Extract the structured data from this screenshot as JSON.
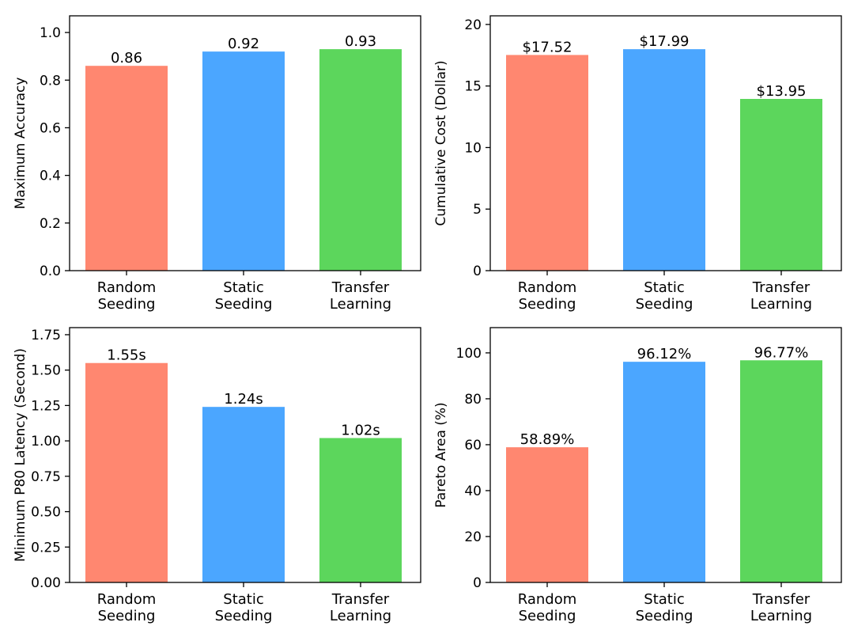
{
  "chart_data": [
    {
      "type": "bar",
      "categories": [
        [
          "Random",
          "Seeding"
        ],
        [
          "Static",
          "Seeding"
        ],
        [
          "Transfer",
          "Learning"
        ]
      ],
      "values": [
        0.86,
        0.92,
        0.93
      ],
      "value_labels": [
        "0.86",
        "0.92",
        "0.93"
      ],
      "title": "",
      "xlabel": "",
      "ylabel": "Maximum Accuracy",
      "ylim": [
        0,
        1.07
      ],
      "yticks": [
        0,
        0.2,
        0.4,
        0.6,
        0.8,
        1.0
      ],
      "ytick_labels": [
        "0.0",
        "0.2",
        "0.4",
        "0.6",
        "0.8",
        "1.0"
      ],
      "colors": [
        "#FF8770",
        "#4BA6FF",
        "#5CD65C"
      ],
      "grid": false
    },
    {
      "type": "bar",
      "categories": [
        [
          "Random",
          "Seeding"
        ],
        [
          "Static",
          "Seeding"
        ],
        [
          "Transfer",
          "Learning"
        ]
      ],
      "values": [
        17.52,
        17.99,
        13.95
      ],
      "value_labels": [
        "$17.52",
        "$17.99",
        "$13.95"
      ],
      "title": "",
      "xlabel": "",
      "ylabel": "Cumulative Cost (Dollar)",
      "ylim": [
        0,
        20.7
      ],
      "yticks": [
        0,
        5,
        10,
        15,
        20
      ],
      "ytick_labels": [
        "0",
        "5",
        "10",
        "15",
        "20"
      ],
      "colors": [
        "#FF8770",
        "#4BA6FF",
        "#5CD65C"
      ],
      "grid": false
    },
    {
      "type": "bar",
      "categories": [
        [
          "Random",
          "Seeding"
        ],
        [
          "Static",
          "Seeding"
        ],
        [
          "Transfer",
          "Learning"
        ]
      ],
      "values": [
        1.55,
        1.24,
        1.02
      ],
      "value_labels": [
        "1.55s",
        "1.24s",
        "1.02s"
      ],
      "title": "",
      "xlabel": "",
      "ylabel": "Minimum P80 Latency (Second)",
      "ylim": [
        0,
        1.8
      ],
      "yticks": [
        0,
        0.25,
        0.5,
        0.75,
        1.0,
        1.25,
        1.5,
        1.75
      ],
      "ytick_labels": [
        "0.00",
        "0.25",
        "0.50",
        "0.75",
        "1.00",
        "1.25",
        "1.50",
        "1.75"
      ],
      "colors": [
        "#FF8770",
        "#4BA6FF",
        "#5CD65C"
      ],
      "grid": false
    },
    {
      "type": "bar",
      "categories": [
        [
          "Random",
          "Seeding"
        ],
        [
          "Static",
          "Seeding"
        ],
        [
          "Transfer",
          "Learning"
        ]
      ],
      "values": [
        58.89,
        96.12,
        96.77
      ],
      "value_labels": [
        "58.89%",
        "96.12%",
        "96.77%"
      ],
      "title": "",
      "xlabel": "",
      "ylabel": "Pareto Area (%)",
      "ylim": [
        0,
        111
      ],
      "yticks": [
        0,
        20,
        40,
        60,
        80,
        100
      ],
      "ytick_labels": [
        "0",
        "20",
        "40",
        "60",
        "80",
        "100"
      ],
      "colors": [
        "#FF8770",
        "#4BA6FF",
        "#5CD65C"
      ],
      "grid": false
    }
  ]
}
